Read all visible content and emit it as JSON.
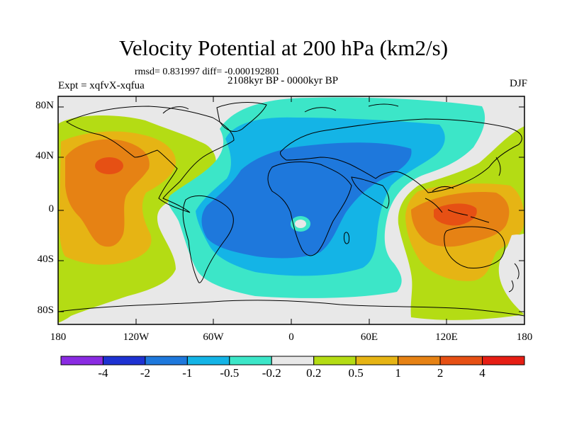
{
  "title": "Velocity Potential at 200 hPa (km2/s)",
  "stats": "rmsd= 0.831997 diff= -0.000192801",
  "period": "2108kyr BP - 0000kyr BP",
  "experiment": "Expt = xqfvX-xqfua",
  "season": "DJF",
  "lat_labels": [
    "80N",
    "40N",
    "0",
    "40S",
    "80S"
  ],
  "lon_labels": [
    "180",
    "120W",
    "60W",
    "0",
    "60E",
    "120E",
    "180"
  ],
  "colorbar": {
    "labels": [
      "-4",
      "-2",
      "-1",
      "-0.5",
      "-0.2",
      "0.2",
      "0.5",
      "1",
      "2",
      "4"
    ],
    "colors": [
      "#8a2be2",
      "#1e32d2",
      "#1e78dc",
      "#14b4e6",
      "#3ce6c8",
      "#e8e8e8",
      "#b4dc14",
      "#e6b414",
      "#e68214",
      "#e65014",
      "#e61e14"
    ]
  }
}
